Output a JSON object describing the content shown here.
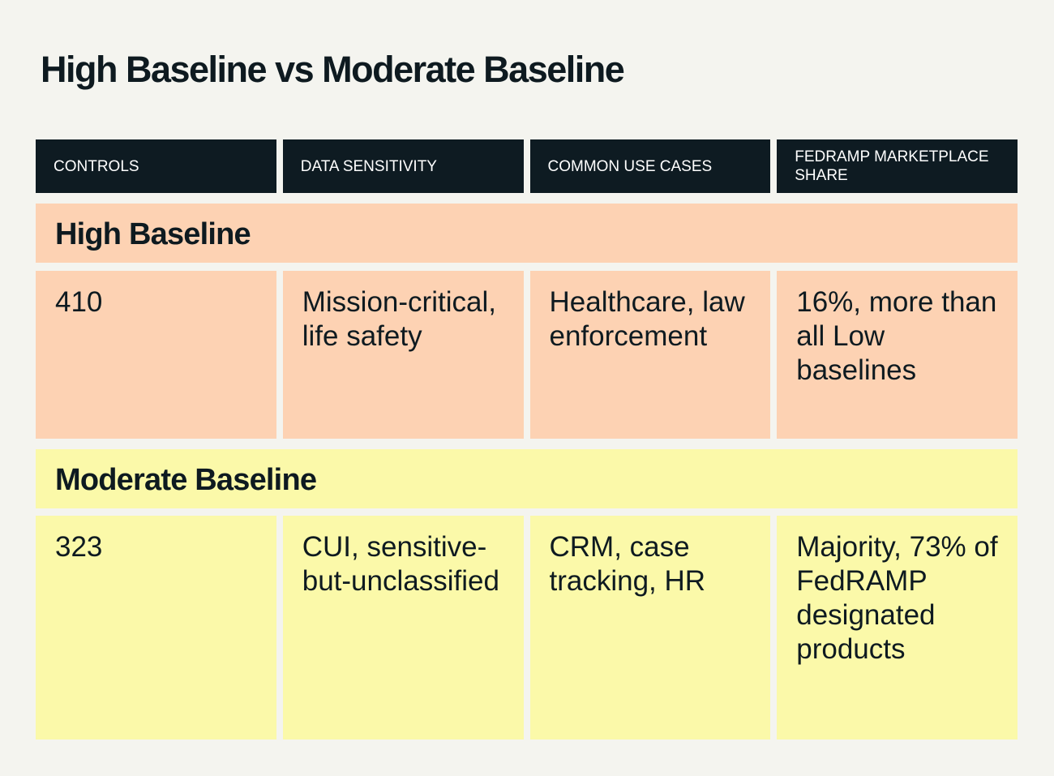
{
  "title": "High Baseline vs Moderate Baseline",
  "colors": {
    "header": "#0e1b22",
    "high": "#fdd2b3",
    "moderate": "#fbf9a9",
    "background": "#f4f4ef"
  },
  "columns": [
    "CONTROLS",
    "DATA SENSITIVITY",
    "COMMON USE CASES",
    "FEDRAMP MARKETPLACE SHARE"
  ],
  "sections": [
    {
      "label": "High Baseline",
      "cells": [
        "410",
        "Mission-critical, life safety",
        "Healthcare, law enforcement",
        "16%, more than all Low baselines"
      ]
    },
    {
      "label": "Moderate Baseline",
      "cells": [
        "323",
        "CUI, sensitive-but-unclassified",
        "CRM, case tracking, HR",
        "Majority, 73% of FedRAMP designated products"
      ]
    }
  ]
}
